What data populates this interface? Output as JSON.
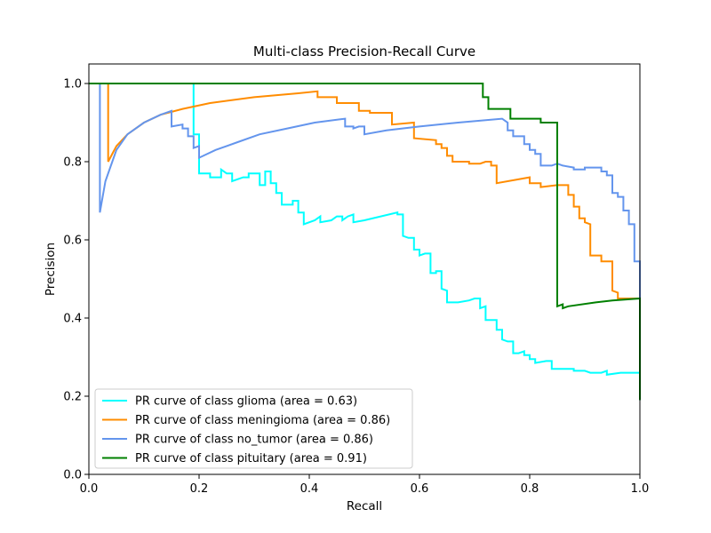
{
  "chart_data": {
    "type": "line",
    "title": "Multi-class Precision-Recall Curve",
    "xlabel": "Recall",
    "ylabel": "Precision",
    "xlim": [
      0,
      1
    ],
    "ylim": [
      0,
      1.05
    ],
    "xticks": [
      "0.0",
      "0.2",
      "0.4",
      "0.6",
      "0.8",
      "1.0"
    ],
    "yticks": [
      "0.0",
      "0.2",
      "0.4",
      "0.6",
      "0.8",
      "1.0"
    ],
    "grid": false,
    "legend_position": "lower-left",
    "series": [
      {
        "name": "PR curve of class glioma (area = 0.63)",
        "color": "#00ffff",
        "points": [
          [
            0,
            1.0
          ],
          [
            0.19,
            1.0
          ],
          [
            0.19,
            0.87
          ],
          [
            0.2,
            0.87
          ],
          [
            0.2,
            0.77
          ],
          [
            0.22,
            0.77
          ],
          [
            0.22,
            0.76
          ],
          [
            0.24,
            0.76
          ],
          [
            0.24,
            0.78
          ],
          [
            0.25,
            0.77
          ],
          [
            0.26,
            0.77
          ],
          [
            0.26,
            0.75
          ],
          [
            0.28,
            0.76
          ],
          [
            0.29,
            0.76
          ],
          [
            0.29,
            0.77
          ],
          [
            0.31,
            0.77
          ],
          [
            0.31,
            0.74
          ],
          [
            0.32,
            0.74
          ],
          [
            0.32,
            0.775
          ],
          [
            0.33,
            0.775
          ],
          [
            0.33,
            0.745
          ],
          [
            0.34,
            0.745
          ],
          [
            0.34,
            0.72
          ],
          [
            0.35,
            0.72
          ],
          [
            0.35,
            0.69
          ],
          [
            0.37,
            0.69
          ],
          [
            0.37,
            0.7
          ],
          [
            0.38,
            0.7
          ],
          [
            0.38,
            0.67
          ],
          [
            0.39,
            0.67
          ],
          [
            0.39,
            0.64
          ],
          [
            0.41,
            0.65
          ],
          [
            0.42,
            0.66
          ],
          [
            0.42,
            0.645
          ],
          [
            0.44,
            0.65
          ],
          [
            0.45,
            0.66
          ],
          [
            0.46,
            0.66
          ],
          [
            0.46,
            0.65
          ],
          [
            0.47,
            0.66
          ],
          [
            0.48,
            0.665
          ],
          [
            0.48,
            0.645
          ],
          [
            0.5,
            0.65
          ],
          [
            0.56,
            0.67
          ],
          [
            0.56,
            0.665
          ],
          [
            0.57,
            0.665
          ],
          [
            0.57,
            0.61
          ],
          [
            0.58,
            0.605
          ],
          [
            0.59,
            0.605
          ],
          [
            0.59,
            0.575
          ],
          [
            0.6,
            0.575
          ],
          [
            0.6,
            0.56
          ],
          [
            0.61,
            0.565
          ],
          [
            0.62,
            0.565
          ],
          [
            0.62,
            0.515
          ],
          [
            0.63,
            0.515
          ],
          [
            0.63,
            0.52
          ],
          [
            0.64,
            0.52
          ],
          [
            0.64,
            0.475
          ],
          [
            0.65,
            0.47
          ],
          [
            0.65,
            0.44
          ],
          [
            0.67,
            0.44
          ],
          [
            0.69,
            0.445
          ],
          [
            0.7,
            0.45
          ],
          [
            0.71,
            0.45
          ],
          [
            0.71,
            0.425
          ],
          [
            0.72,
            0.43
          ],
          [
            0.72,
            0.395
          ],
          [
            0.74,
            0.395
          ],
          [
            0.74,
            0.37
          ],
          [
            0.75,
            0.37
          ],
          [
            0.75,
            0.345
          ],
          [
            0.76,
            0.34
          ],
          [
            0.77,
            0.34
          ],
          [
            0.77,
            0.31
          ],
          [
            0.78,
            0.31
          ],
          [
            0.79,
            0.315
          ],
          [
            0.79,
            0.305
          ],
          [
            0.8,
            0.305
          ],
          [
            0.8,
            0.295
          ],
          [
            0.81,
            0.295
          ],
          [
            0.81,
            0.285
          ],
          [
            0.83,
            0.29
          ],
          [
            0.84,
            0.29
          ],
          [
            0.84,
            0.27
          ],
          [
            0.86,
            0.27
          ],
          [
            0.87,
            0.27
          ],
          [
            0.88,
            0.27
          ],
          [
            0.88,
            0.265
          ],
          [
            0.9,
            0.265
          ],
          [
            0.91,
            0.26
          ],
          [
            0.93,
            0.26
          ],
          [
            0.94,
            0.265
          ],
          [
            0.94,
            0.255
          ],
          [
            0.965,
            0.26
          ],
          [
            1.0,
            0.26
          ],
          [
            1.0,
            0.19
          ]
        ]
      },
      {
        "name": "PR curve of class meningioma (area = 0.86)",
        "color": "#ff8c00",
        "points": [
          [
            0,
            1.0
          ],
          [
            0.035,
            1.0
          ],
          [
            0.035,
            0.8
          ],
          [
            0.05,
            0.84
          ],
          [
            0.07,
            0.87
          ],
          [
            0.1,
            0.9
          ],
          [
            0.13,
            0.92
          ],
          [
            0.17,
            0.935
          ],
          [
            0.22,
            0.95
          ],
          [
            0.3,
            0.965
          ],
          [
            0.38,
            0.975
          ],
          [
            0.415,
            0.98
          ],
          [
            0.415,
            0.965
          ],
          [
            0.45,
            0.965
          ],
          [
            0.45,
            0.95
          ],
          [
            0.49,
            0.95
          ],
          [
            0.49,
            0.93
          ],
          [
            0.51,
            0.93
          ],
          [
            0.51,
            0.925
          ],
          [
            0.55,
            0.925
          ],
          [
            0.55,
            0.895
          ],
          [
            0.59,
            0.9
          ],
          [
            0.59,
            0.86
          ],
          [
            0.63,
            0.855
          ],
          [
            0.63,
            0.845
          ],
          [
            0.64,
            0.845
          ],
          [
            0.64,
            0.835
          ],
          [
            0.65,
            0.835
          ],
          [
            0.65,
            0.815
          ],
          [
            0.66,
            0.815
          ],
          [
            0.66,
            0.8
          ],
          [
            0.68,
            0.8
          ],
          [
            0.69,
            0.8
          ],
          [
            0.69,
            0.795
          ],
          [
            0.71,
            0.795
          ],
          [
            0.72,
            0.8
          ],
          [
            0.73,
            0.8
          ],
          [
            0.73,
            0.79
          ],
          [
            0.74,
            0.79
          ],
          [
            0.74,
            0.745
          ],
          [
            0.8,
            0.76
          ],
          [
            0.8,
            0.745
          ],
          [
            0.82,
            0.745
          ],
          [
            0.82,
            0.735
          ],
          [
            0.85,
            0.74
          ],
          [
            0.87,
            0.74
          ],
          [
            0.87,
            0.715
          ],
          [
            0.88,
            0.715
          ],
          [
            0.88,
            0.685
          ],
          [
            0.89,
            0.685
          ],
          [
            0.89,
            0.655
          ],
          [
            0.9,
            0.655
          ],
          [
            0.9,
            0.645
          ],
          [
            0.91,
            0.64
          ],
          [
            0.91,
            0.56
          ],
          [
            0.93,
            0.56
          ],
          [
            0.93,
            0.545
          ],
          [
            0.95,
            0.545
          ],
          [
            0.95,
            0.47
          ],
          [
            0.96,
            0.465
          ],
          [
            0.96,
            0.45
          ],
          [
            1.0,
            0.45
          ]
        ]
      },
      {
        "name": "PR curve of class no_tumor (area = 0.86)",
        "color": "#6495ed",
        "points": [
          [
            0,
            1.0
          ],
          [
            0.02,
            1.0
          ],
          [
            0.02,
            0.67
          ],
          [
            0.03,
            0.75
          ],
          [
            0.05,
            0.83
          ],
          [
            0.07,
            0.87
          ],
          [
            0.1,
            0.9
          ],
          [
            0.13,
            0.92
          ],
          [
            0.15,
            0.93
          ],
          [
            0.15,
            0.89
          ],
          [
            0.17,
            0.895
          ],
          [
            0.17,
            0.885
          ],
          [
            0.18,
            0.885
          ],
          [
            0.18,
            0.865
          ],
          [
            0.19,
            0.865
          ],
          [
            0.19,
            0.835
          ],
          [
            0.2,
            0.84
          ],
          [
            0.2,
            0.81
          ],
          [
            0.23,
            0.83
          ],
          [
            0.27,
            0.85
          ],
          [
            0.31,
            0.87
          ],
          [
            0.36,
            0.885
          ],
          [
            0.41,
            0.9
          ],
          [
            0.465,
            0.91
          ],
          [
            0.465,
            0.89
          ],
          [
            0.48,
            0.89
          ],
          [
            0.48,
            0.885
          ],
          [
            0.49,
            0.89
          ],
          [
            0.5,
            0.89
          ],
          [
            0.5,
            0.87
          ],
          [
            0.54,
            0.88
          ],
          [
            0.6,
            0.89
          ],
          [
            0.67,
            0.9
          ],
          [
            0.75,
            0.91
          ],
          [
            0.76,
            0.9
          ],
          [
            0.76,
            0.88
          ],
          [
            0.77,
            0.88
          ],
          [
            0.77,
            0.865
          ],
          [
            0.79,
            0.865
          ],
          [
            0.79,
            0.845
          ],
          [
            0.8,
            0.845
          ],
          [
            0.8,
            0.83
          ],
          [
            0.81,
            0.83
          ],
          [
            0.81,
            0.82
          ],
          [
            0.82,
            0.82
          ],
          [
            0.82,
            0.79
          ],
          [
            0.84,
            0.79
          ],
          [
            0.85,
            0.795
          ],
          [
            0.86,
            0.79
          ],
          [
            0.88,
            0.785
          ],
          [
            0.88,
            0.78
          ],
          [
            0.9,
            0.78
          ],
          [
            0.9,
            0.785
          ],
          [
            0.93,
            0.785
          ],
          [
            0.93,
            0.775
          ],
          [
            0.94,
            0.775
          ],
          [
            0.94,
            0.765
          ],
          [
            0.95,
            0.765
          ],
          [
            0.95,
            0.72
          ],
          [
            0.96,
            0.72
          ],
          [
            0.96,
            0.71
          ],
          [
            0.97,
            0.71
          ],
          [
            0.97,
            0.675
          ],
          [
            0.98,
            0.675
          ],
          [
            0.98,
            0.64
          ],
          [
            0.99,
            0.64
          ],
          [
            0.99,
            0.545
          ],
          [
            1.0,
            0.545
          ],
          [
            1.0,
            0.44
          ]
        ]
      },
      {
        "name": "PR curve of class pituitary (area = 0.91)",
        "color": "#008000",
        "points": [
          [
            0,
            1.0
          ],
          [
            0.715,
            1.0
          ],
          [
            0.715,
            0.965
          ],
          [
            0.725,
            0.965
          ],
          [
            0.725,
            0.935
          ],
          [
            0.765,
            0.935
          ],
          [
            0.765,
            0.91
          ],
          [
            0.82,
            0.91
          ],
          [
            0.82,
            0.9
          ],
          [
            0.85,
            0.9
          ],
          [
            0.85,
            0.43
          ],
          [
            0.86,
            0.435
          ],
          [
            0.86,
            0.425
          ],
          [
            0.87,
            0.43
          ],
          [
            0.92,
            0.44
          ],
          [
            0.95,
            0.445
          ],
          [
            1.0,
            0.45
          ],
          [
            1.0,
            0.19
          ]
        ]
      }
    ]
  }
}
